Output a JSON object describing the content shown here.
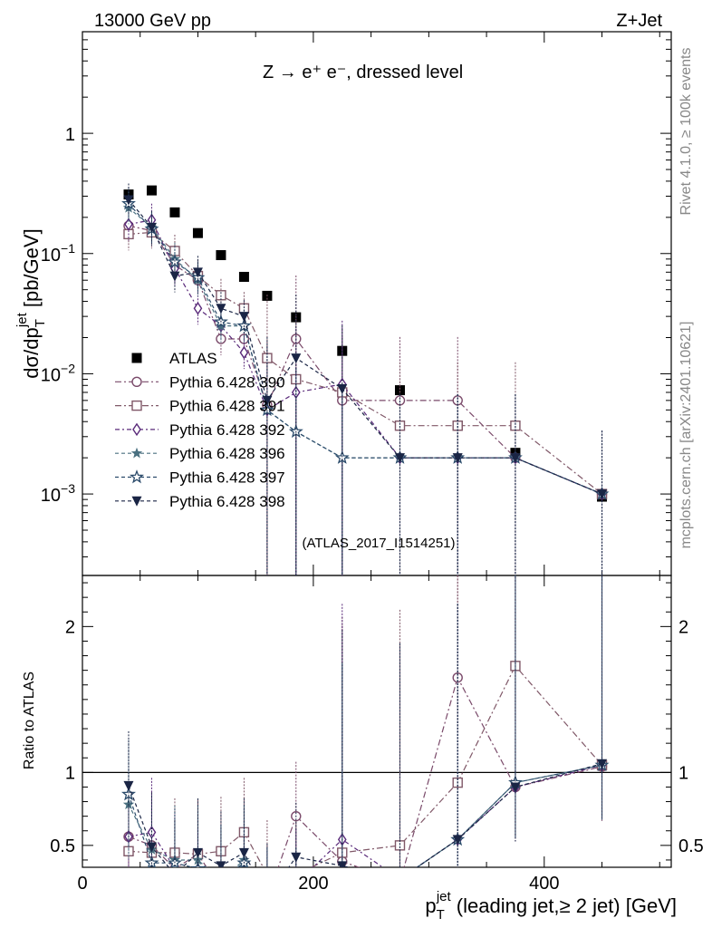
{
  "header": {
    "left": "13000 GeV pp",
    "right": "Z+Jet"
  },
  "side": {
    "rivet": "Rivet 4.1.0, ≥ 100k events",
    "mcplots": "mcplots.cern.ch [arXiv:2401.10621]"
  },
  "plot": {
    "process_label": "Z → e⁺ e⁻, dressed level",
    "analysis_id": "(ATLAS_2017_I1514251)",
    "ylabel": "dσ/dp_T^jet [pb/GeV]",
    "ratio_ylabel": "Ratio to ATLAS",
    "xlabel": "p_T^jet (leading jet,≥ 2 jet) [GeV]"
  },
  "ticks": {
    "x": [
      "0",
      "200",
      "400"
    ],
    "top_y": [
      {
        "base": "10",
        "exp": "−3"
      },
      {
        "base": "10",
        "exp": "−2"
      },
      {
        "base": "10",
        "exp": "−1"
      },
      {
        "base": "1",
        "exp": ""
      }
    ],
    "ratio_y": [
      "0.5",
      "1",
      "2"
    ]
  },
  "chart_data": {
    "type": "scatter",
    "title": "Z → e⁺ e⁻, dressed level",
    "xlabel": "p_T^jet (leading jet,≥ 2 jet) [GeV]",
    "ylabel": "dσ/dp_T^jet [pb/GeV]",
    "xlim": [
      0,
      510
    ],
    "ylim": [
      0.00021,
      7
    ],
    "yscale": "log",
    "ratio_ylim": [
      0.35,
      2.35
    ],
    "legend_position": "center-left",
    "x": [
      40,
      60,
      80,
      100,
      120,
      140,
      160,
      185,
      225,
      275,
      325,
      375,
      450
    ],
    "series": [
      {
        "name": "ATLAS",
        "marker": "square-filled",
        "color": "#000000",
        "values": [
          0.31,
          0.335,
          0.22,
          0.148,
          0.097,
          0.064,
          0.0445,
          0.0295,
          0.0155,
          0.0073,
          0.0037,
          0.0022,
          0.00095
        ]
      },
      {
        "name": "Pythia 6.428 390",
        "marker": "circle-open",
        "color": "#7a4a6a",
        "values": [
          0.17,
          0.155,
          0.08,
          0.06,
          0.0195,
          0.0195,
          0.0055,
          0.0195,
          0.006,
          0.006,
          0.006,
          0.002,
          0.001
        ]
      },
      {
        "name": "Pythia 6.428 391",
        "marker": "square-open",
        "color": "#805868",
        "values": [
          0.145,
          0.15,
          0.105,
          0.065,
          0.045,
          0.035,
          0.0135,
          0.009,
          0.007,
          0.0037,
          0.0037,
          0.0037,
          0.001
        ]
      },
      {
        "name": "Pythia 6.428 392",
        "marker": "diamond-open",
        "color": "#5a2a7a",
        "values": [
          0.175,
          0.19,
          0.075,
          0.035,
          0.025,
          0.015,
          0.005,
          0.007,
          0.0082,
          0.002,
          0.002,
          0.002,
          0.001
        ]
      },
      {
        "name": "Pythia 6.428 396",
        "marker": "star-filled",
        "color": "#4a7080",
        "values": [
          0.24,
          0.165,
          0.09,
          0.06,
          0.025,
          0.025,
          0.005,
          0.0033,
          0.002,
          0.002,
          0.002,
          0.002,
          0.001
        ]
      },
      {
        "name": "Pythia 6.428 397",
        "marker": "star-open",
        "color": "#2a4a6a",
        "values": [
          0.26,
          0.16,
          0.085,
          0.063,
          0.027,
          0.025,
          0.005,
          0.0033,
          0.002,
          0.002,
          0.002,
          0.002,
          0.001
        ]
      },
      {
        "name": "Pythia 6.428 398",
        "marker": "triangle-down-filled",
        "color": "#1a2545",
        "values": [
          0.28,
          0.165,
          0.065,
          0.07,
          0.035,
          0.03,
          0.006,
          0.0135,
          0.0075,
          0.002,
          0.002,
          0.002,
          0.001
        ]
      }
    ],
    "ratio_series": [
      {
        "name": "Pythia 6.428 390",
        "values": [
          0.56,
          0.5,
          0.34,
          0.44,
          0.2,
          0.3,
          0.13,
          0.7,
          0.39,
          0.25,
          1.65,
          0.9,
          1.04
        ]
      },
      {
        "name": "Pythia 6.428 391",
        "values": [
          0.46,
          0.45,
          0.45,
          0.44,
          0.46,
          0.59,
          0.3,
          0.3,
          0.45,
          0.5,
          0.93,
          1.73,
          1.05
        ]
      },
      {
        "name": "Pythia 6.428 392",
        "values": [
          0.56,
          0.59,
          0.34,
          0.24,
          0.26,
          0.23,
          0.11,
          0.24,
          0.54,
          0.27,
          0.54,
          0.9,
          1.05
        ]
      },
      {
        "name": "Pythia 6.428 396",
        "values": [
          0.78,
          0.47,
          0.4,
          0.4,
          0.26,
          0.4,
          0.11,
          0.11,
          0.13,
          0.27,
          0.54,
          0.93,
          1.05
        ]
      },
      {
        "name": "Pythia 6.428 397",
        "values": [
          0.85,
          0.38,
          0.38,
          0.34,
          0.27,
          0.38,
          0.11,
          0.11,
          0.13,
          0.27,
          0.54,
          0.93,
          1.05
        ]
      },
      {
        "name": "Pythia 6.428 398",
        "values": [
          0.91,
          0.49,
          0.3,
          0.45,
          0.36,
          0.45,
          0.14,
          0.42,
          0.36,
          0.27,
          0.54,
          0.9,
          1.06
        ]
      }
    ]
  }
}
